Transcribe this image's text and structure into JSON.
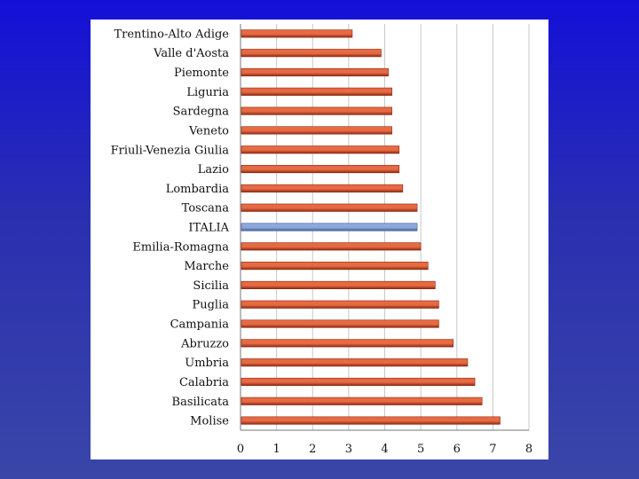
{
  "colors": {
    "background_top": "#1410d8",
    "background_bottom": "#3a46a8",
    "bar_fill": "#e86a42",
    "bar_shade": "#8a2a14",
    "highlight_fill": "#8ea8dc",
    "highlight_shade": "#4a5e95"
  },
  "chart_data": {
    "type": "bar",
    "orientation": "horizontal",
    "title": "",
    "xlabel": "",
    "ylabel": "",
    "xlim": [
      0,
      8
    ],
    "x_ticks": [
      "0",
      "1",
      "2",
      "3",
      "4",
      "5",
      "6",
      "7",
      "8"
    ],
    "grid": "vertical",
    "highlight": "ITALIA",
    "categories": [
      "Trentino-Alto Adige",
      "Valle d'Aosta",
      "Piemonte",
      "Liguria",
      "Sardegna",
      "Veneto",
      "Friuli-Venezia Giulia",
      "Lazio",
      "Lombardia",
      "Toscana",
      "ITALIA",
      "Emilia-Romagna",
      "Marche",
      "Sicilia",
      "Puglia",
      "Campania",
      "Abruzzo",
      "Umbria",
      "Calabria",
      "Basilicata",
      "Molise"
    ],
    "values": [
      3.1,
      3.9,
      4.1,
      4.2,
      4.2,
      4.2,
      4.4,
      4.4,
      4.5,
      4.9,
      4.9,
      5.0,
      5.2,
      5.4,
      5.5,
      5.5,
      5.9,
      6.3,
      6.5,
      6.7,
      7.2
    ]
  }
}
